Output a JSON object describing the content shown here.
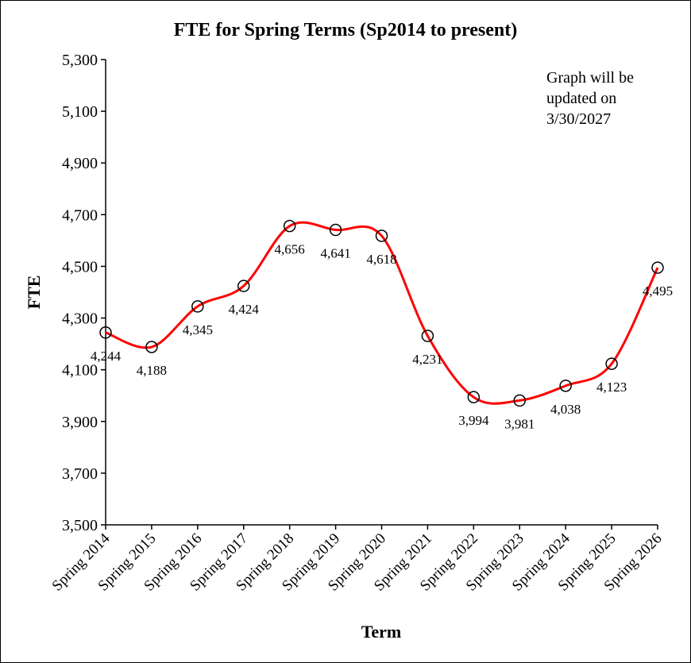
{
  "chart_data": {
    "type": "line",
    "title": "FTE for Spring Terms (Sp2014 to present)",
    "xlabel": "Term",
    "ylabel": "FTE",
    "ylim": [
      3500,
      5300
    ],
    "ytick_step": 200,
    "yticks": [
      "3,500",
      "3,700",
      "3,900",
      "4,100",
      "4,300",
      "4,500",
      "4,700",
      "4,900",
      "5,100",
      "5,300"
    ],
    "grid": false,
    "smoothed": true,
    "line_color": "#FF0000",
    "marker": "open-circle",
    "categories": [
      "Spring 2014",
      "Spring 2015",
      "Spring 2016",
      "Spring 2017",
      "Spring 2018",
      "Spring 2019",
      "Spring 2020",
      "Spring 2021",
      "Spring 2022",
      "Spring 2023",
      "Spring 2024",
      "Spring 2025",
      "Spring 2026"
    ],
    "values": [
      4244,
      4188,
      4345,
      4424,
      4656,
      4641,
      4618,
      4231,
      3994,
      3981,
      4038,
      4123,
      4495
    ],
    "data_labels": [
      "4,244",
      "4,188",
      "4,345",
      "4,424",
      "4,656",
      "4,641",
      "4,618",
      "4,231",
      "3,994",
      "3,981",
      "4,038",
      "4,123",
      "4,495"
    ],
    "annotation": [
      "Graph will be",
      "updated on",
      "3/30/2027"
    ]
  }
}
